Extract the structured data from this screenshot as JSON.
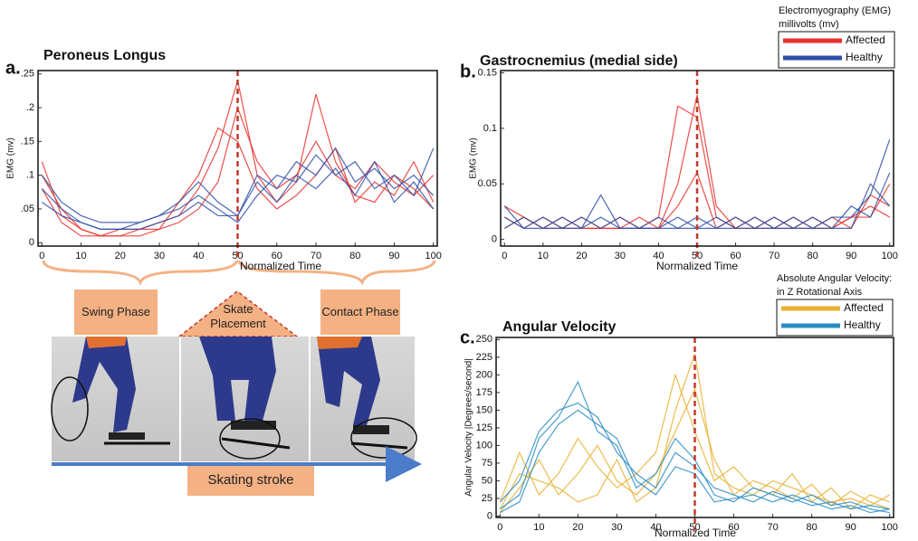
{
  "chart_data": [
    {
      "type": "line",
      "panel": "a.",
      "title": "Peroneus Longus",
      "x_label": "Normalized Time",
      "y_label": "EMG (mv)",
      "x": [
        0,
        5,
        10,
        15,
        20,
        25,
        30,
        35,
        40,
        45,
        50,
        55,
        60,
        65,
        70,
        75,
        80,
        85,
        90,
        95,
        100
      ],
      "xlim": [
        -1,
        101
      ],
      "xticks": [
        0,
        10,
        20,
        30,
        40,
        50,
        60,
        70,
        80,
        90,
        100
      ],
      "ylim": [
        -0.005,
        0.255
      ],
      "yticks": [
        0,
        {
          "value": 0.05,
          "label": ".05"
        },
        {
          "value": 0.1,
          "label": ".1"
        },
        {
          "value": 0.15,
          "label": ".15"
        },
        {
          "value": 0.2,
          "label": ".2"
        },
        {
          "value": 0.25,
          "label": ".25"
        }
      ],
      "vline": 50,
      "vline_color": "#c0392b",
      "series": [
        {
          "color": "#e8302a",
          "traces": [
            [
              0.12,
              0.04,
              0.02,
              0.01,
              0.01,
              0.01,
              0.02,
              0.03,
              0.05,
              0.09,
              0.2,
              0.12,
              0.08,
              0.1,
              0.15,
              0.1,
              0.08,
              0.12,
              0.09,
              0.07,
              0.1
            ],
            [
              0.08,
              0.03,
              0.01,
              0.01,
              0.01,
              0.02,
              0.03,
              0.04,
              0.08,
              0.14,
              0.24,
              0.1,
              0.06,
              0.09,
              0.22,
              0.12,
              0.07,
              0.06,
              0.1,
              0.08,
              0.05
            ],
            [
              0.1,
              0.05,
              0.02,
              0.01,
              0.02,
              0.02,
              0.02,
              0.06,
              0.1,
              0.17,
              0.15,
              0.08,
              0.05,
              0.07,
              0.1,
              0.14,
              0.06,
              0.09,
              0.07,
              0.12,
              0.06
            ]
          ]
        },
        {
          "color": "#2f4fa8",
          "traces": [
            [
              0.1,
              0.06,
              0.04,
              0.03,
              0.03,
              0.03,
              0.04,
              0.06,
              0.09,
              0.06,
              0.04,
              0.1,
              0.08,
              0.12,
              0.1,
              0.14,
              0.09,
              0.11,
              0.08,
              0.1,
              0.07
            ],
            [
              0.08,
              0.05,
              0.03,
              0.02,
              0.02,
              0.03,
              0.04,
              0.05,
              0.07,
              0.05,
              0.03,
              0.07,
              0.1,
              0.09,
              0.13,
              0.1,
              0.12,
              0.08,
              0.1,
              0.07,
              0.14
            ],
            [
              0.06,
              0.04,
              0.03,
              0.02,
              0.02,
              0.02,
              0.03,
              0.04,
              0.06,
              0.04,
              0.04,
              0.09,
              0.06,
              0.1,
              0.08,
              0.11,
              0.07,
              0.12,
              0.06,
              0.09,
              0.05
            ]
          ]
        }
      ]
    },
    {
      "type": "line",
      "panel": "b.",
      "title": "Gastrocnemius (medial side)",
      "x_label": "Normalized Time",
      "y_label": "EMG (mv)",
      "legend_title": [
        "Electromyography (EMG)",
        "millivolts (mv)"
      ],
      "x": [
        0,
        5,
        10,
        15,
        20,
        25,
        30,
        35,
        40,
        45,
        50,
        55,
        60,
        65,
        70,
        75,
        80,
        85,
        90,
        95,
        100
      ],
      "xlim": [
        -1,
        101
      ],
      "xticks": [
        0,
        10,
        20,
        30,
        40,
        50,
        60,
        70,
        80,
        90,
        100
      ],
      "ylim": [
        -0.006,
        0.152
      ],
      "yticks": [
        0,
        0.05,
        0.1,
        0.15
      ],
      "vline": 50,
      "vline_color": "#c0392b",
      "series": [
        {
          "name": "Affected",
          "color": "#e8302a",
          "traces": [
            [
              0.02,
              0.01,
              0.02,
              0.01,
              0.01,
              0.01,
              0.01,
              0.01,
              0.02,
              0.12,
              0.11,
              0.02,
              0.01,
              0.01,
              0.01,
              0.01,
              0.01,
              0.01,
              0.02,
              0.03,
              0.02
            ],
            [
              0.03,
              0.02,
              0.01,
              0.02,
              0.01,
              0.01,
              0.02,
              0.01,
              0.01,
              0.05,
              0.13,
              0.03,
              0.01,
              0.02,
              0.01,
              0.02,
              0.01,
              0.02,
              0.01,
              0.04,
              0.03
            ],
            [
              0.01,
              0.02,
              0.01,
              0.01,
              0.02,
              0.01,
              0.01,
              0.02,
              0.01,
              0.03,
              0.06,
              0.01,
              0.02,
              0.01,
              0.02,
              0.01,
              0.02,
              0.01,
              0.02,
              0.02,
              0.05
            ]
          ]
        },
        {
          "name": "Healthy",
          "color": "#2f4fa8",
          "traces": [
            [
              0.03,
              0.01,
              0.01,
              0.02,
              0.01,
              0.02,
              0.01,
              0.01,
              0.02,
              0.01,
              0.01,
              0.02,
              0.01,
              0.01,
              0.02,
              0.01,
              0.01,
              0.02,
              0.02,
              0.04,
              0.09
            ],
            [
              0.02,
              0.01,
              0.02,
              0.01,
              0.01,
              0.04,
              0.01,
              0.01,
              0.01,
              0.02,
              0.01,
              0.01,
              0.02,
              0.01,
              0.01,
              0.02,
              0.01,
              0.01,
              0.03,
              0.02,
              0.06
            ],
            [
              0.01,
              0.02,
              0.01,
              0.01,
              0.02,
              0.01,
              0.02,
              0.01,
              0.01,
              0.01,
              0.02,
              0.01,
              0.01,
              0.02,
              0.01,
              0.01,
              0.02,
              0.01,
              0.01,
              0.05,
              0.03
            ]
          ]
        }
      ]
    },
    {
      "type": "line",
      "panel": "c.",
      "title": "Angular Velocity",
      "x_label": "Normalized Time",
      "y_label": "Angular Velocity |Degrees/second|",
      "legend_title": [
        "Absolute Angular Velocity:",
        "in Z  Rotational Axis"
      ],
      "x": [
        0,
        5,
        10,
        15,
        20,
        25,
        30,
        35,
        40,
        45,
        50,
        55,
        60,
        65,
        70,
        75,
        80,
        85,
        90,
        95,
        100
      ],
      "xlim": [
        -1,
        101
      ],
      "xticks": [
        0,
        10,
        20,
        30,
        40,
        50,
        60,
        70,
        80,
        90,
        100
      ],
      "ylim": [
        -2,
        253
      ],
      "yticks": [
        0,
        25,
        50,
        75,
        100,
        125,
        150,
        175,
        200,
        225,
        250
      ],
      "vline": 50,
      "vline_color": "#c0392b",
      "series": [
        {
          "name": "Affected",
          "color": "#e8b030",
          "traces": [
            [
              10,
              60,
              50,
              40,
              20,
              30,
              80,
              20,
              40,
              150,
              230,
              60,
              40,
              30,
              50,
              40,
              30,
              20,
              25,
              15,
              30
            ],
            [
              20,
              90,
              30,
              60,
              110,
              70,
              40,
              60,
              90,
              200,
              120,
              50,
              70,
              40,
              30,
              60,
              20,
              40,
              10,
              30,
              20
            ],
            [
              5,
              40,
              80,
              30,
              60,
              100,
              50,
              30,
              60,
              120,
              180,
              80,
              30,
              50,
              40,
              25,
              45,
              15,
              35,
              20,
              10
            ]
          ]
        },
        {
          "name": "Healthy",
          "color": "#2b8cc4",
          "traces": [
            [
              10,
              30,
              110,
              140,
              190,
              120,
              100,
              40,
              60,
              110,
              80,
              30,
              20,
              40,
              30,
              20,
              30,
              15,
              20,
              10,
              5
            ],
            [
              20,
              50,
              120,
              150,
              160,
              140,
              90,
              60,
              40,
              90,
              70,
              40,
              30,
              20,
              35,
              25,
              15,
              20,
              10,
              15,
              10
            ],
            [
              5,
              20,
              90,
              130,
              150,
              130,
              110,
              50,
              30,
              70,
              60,
              20,
              25,
              30,
              20,
              30,
              20,
              10,
              15,
              5,
              10
            ]
          ]
        }
      ]
    }
  ],
  "diagram": {
    "phases": [
      "Swing Phase",
      "Skate Placement",
      "Contact Phase"
    ],
    "stroke": "Skating stroke"
  }
}
